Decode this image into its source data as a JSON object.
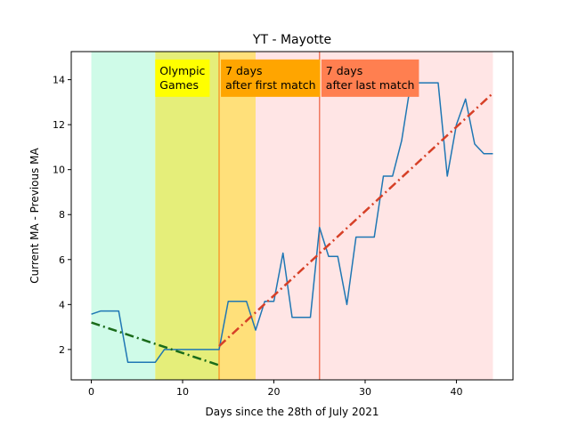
{
  "chart_data": {
    "type": "line",
    "title": "YT - Mayotte",
    "xlabel": "Days since the 28th of July 2021",
    "ylabel": "Current MA - Previous MA",
    "xlim": [
      -2.2,
      46.2
    ],
    "ylim": [
      0.65,
      15.25
    ],
    "xticks": [
      0,
      10,
      20,
      30,
      40
    ],
    "yticks": [
      2,
      4,
      6,
      8,
      10,
      12,
      14
    ],
    "grid": false,
    "bands": [
      {
        "x0": 0,
        "x1": 7,
        "color": "#cffbe8"
      },
      {
        "x0": 7,
        "x1": 14,
        "color": "#e5ee7a"
      },
      {
        "x0": 14,
        "x1": 18,
        "color": "#ffe07a"
      },
      {
        "x0": 18,
        "x1": 44,
        "color": "#ffe5e5"
      }
    ],
    "vlines": [
      {
        "x": 14,
        "color": "#f5a030"
      },
      {
        "x": 25,
        "color": "#f07860"
      }
    ],
    "annotations": [
      {
        "x": 7,
        "y": 14.9,
        "text_lines": [
          "Olympic",
          "Games"
        ],
        "bg": "#ffff00"
      },
      {
        "x": 14.2,
        "y": 14.9,
        "text_lines": [
          "7 days",
          "after first match"
        ],
        "bg": "#ffa500"
      },
      {
        "x": 25.2,
        "y": 14.9,
        "text_lines": [
          "7 days",
          "after last match"
        ],
        "bg": "#ff7f50"
      }
    ],
    "series": [
      {
        "color": "#1f77b4",
        "style": "solid",
        "x": [
          0,
          1,
          2,
          3,
          4,
          5,
          6,
          7,
          8,
          9,
          10,
          11,
          12,
          13,
          14,
          15,
          16,
          17,
          18,
          19,
          20,
          21,
          22,
          23,
          24,
          25,
          26,
          27,
          28,
          29,
          30,
          31,
          32,
          33,
          34,
          35,
          36,
          37,
          38,
          39,
          40,
          41,
          42,
          43,
          44
        ],
        "y": [
          3.57,
          3.71,
          3.71,
          3.71,
          1.43,
          1.43,
          1.43,
          1.43,
          2.0,
          2.0,
          2.0,
          2.0,
          2.0,
          2.0,
          2.0,
          4.14,
          4.14,
          4.14,
          2.86,
          4.14,
          4.14,
          6.29,
          3.43,
          3.43,
          3.43,
          7.43,
          6.14,
          6.14,
          4.0,
          7.0,
          7.0,
          7.0,
          9.71,
          9.71,
          11.29,
          13.86,
          13.86,
          13.86,
          13.86,
          9.71,
          12.0,
          13.14,
          11.14,
          10.71,
          10.71
        ]
      },
      {
        "color": "#1a6b1a",
        "style": "dashdot",
        "x": [
          0,
          14
        ],
        "y": [
          3.2,
          1.3
        ]
      },
      {
        "color": "#d64027",
        "style": "dashdot",
        "x": [
          14,
          44
        ],
        "y": [
          2.15,
          13.4
        ]
      }
    ]
  }
}
